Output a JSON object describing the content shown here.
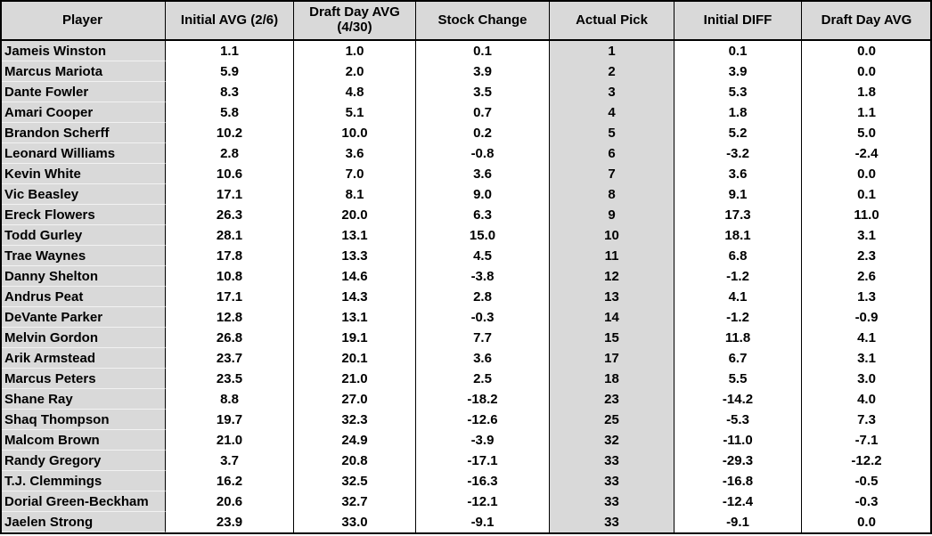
{
  "table": {
    "header": [
      "Player",
      "Initial AVG (2/6)",
      "Draft Day AVG (4/30)",
      "Stock Change",
      "Actual Pick",
      "Initial DIFF",
      "Draft Day AVG"
    ],
    "rows": [
      [
        "Jameis Winston",
        "1.1",
        "1.0",
        "0.1",
        "1",
        "0.1",
        "0.0"
      ],
      [
        "Marcus Mariota",
        "5.9",
        "2.0",
        "3.9",
        "2",
        "3.9",
        "0.0"
      ],
      [
        "Dante Fowler",
        "8.3",
        "4.8",
        "3.5",
        "3",
        "5.3",
        "1.8"
      ],
      [
        "Amari Cooper",
        "5.8",
        "5.1",
        "0.7",
        "4",
        "1.8",
        "1.1"
      ],
      [
        "Brandon Scherff",
        "10.2",
        "10.0",
        "0.2",
        "5",
        "5.2",
        "5.0"
      ],
      [
        "Leonard Williams",
        "2.8",
        "3.6",
        "-0.8",
        "6",
        "-3.2",
        "-2.4"
      ],
      [
        "Kevin White",
        "10.6",
        "7.0",
        "3.6",
        "7",
        "3.6",
        "0.0"
      ],
      [
        "Vic Beasley",
        "17.1",
        "8.1",
        "9.0",
        "8",
        "9.1",
        "0.1"
      ],
      [
        "Ereck Flowers",
        "26.3",
        "20.0",
        "6.3",
        "9",
        "17.3",
        "11.0"
      ],
      [
        "Todd Gurley",
        "28.1",
        "13.1",
        "15.0",
        "10",
        "18.1",
        "3.1"
      ],
      [
        "Trae Waynes",
        "17.8",
        "13.3",
        "4.5",
        "11",
        "6.8",
        "2.3"
      ],
      [
        "Danny Shelton",
        "10.8",
        "14.6",
        "-3.8",
        "12",
        "-1.2",
        "2.6"
      ],
      [
        "Andrus Peat",
        "17.1",
        "14.3",
        "2.8",
        "13",
        "4.1",
        "1.3"
      ],
      [
        "DeVante Parker",
        "12.8",
        "13.1",
        "-0.3",
        "14",
        "-1.2",
        "-0.9"
      ],
      [
        "Melvin Gordon",
        "26.8",
        "19.1",
        "7.7",
        "15",
        "11.8",
        "4.1"
      ],
      [
        "Arik Armstead",
        "23.7",
        "20.1",
        "3.6",
        "17",
        "6.7",
        "3.1"
      ],
      [
        "Marcus Peters",
        "23.5",
        "21.0",
        "2.5",
        "18",
        "5.5",
        "3.0"
      ],
      [
        "Shane Ray",
        "8.8",
        "27.0",
        "-18.2",
        "23",
        "-14.2",
        "4.0"
      ],
      [
        "Shaq Thompson",
        "19.7",
        "32.3",
        "-12.6",
        "25",
        "-5.3",
        "7.3"
      ],
      [
        "Malcom Brown",
        "21.0",
        "24.9",
        "-3.9",
        "32",
        "-11.0",
        "-7.1"
      ],
      [
        "Randy Gregory",
        "3.7",
        "20.8",
        "-17.1",
        "33",
        "-29.3",
        "-12.2"
      ],
      [
        "T.J. Clemmings",
        "16.2",
        "32.5",
        "-16.3",
        "33",
        "-16.8",
        "-0.5"
      ],
      [
        "Dorial Green-Beckham",
        "20.6",
        "32.7",
        "-12.1",
        "33",
        "-12.4",
        "-0.3"
      ],
      [
        "Jaelen Strong",
        "23.9",
        "33.0",
        "-9.1",
        "33",
        "-9.1",
        "0.0"
      ]
    ]
  }
}
